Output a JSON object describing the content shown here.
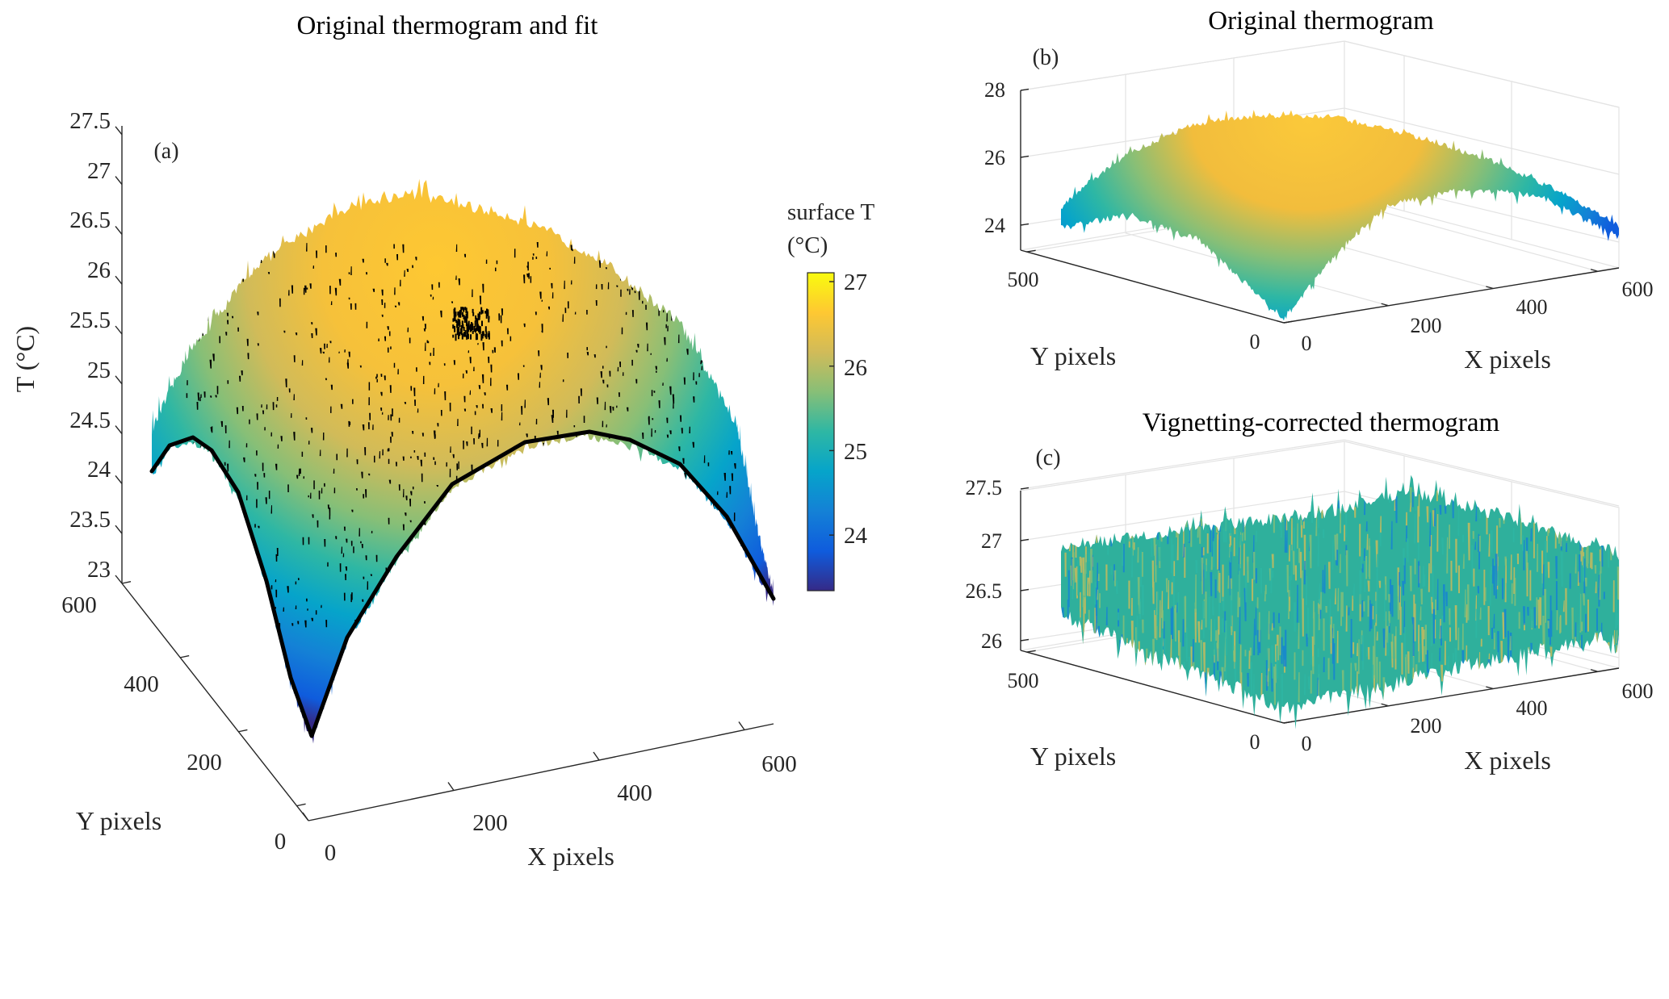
{
  "colormap": [
    "#352a87",
    "#0f5cdd",
    "#1481d6",
    "#06a4ca",
    "#2eb7a4",
    "#87bf77",
    "#d1bb59",
    "#fec832",
    "#f9fb0e"
  ],
  "chart_data": [
    {
      "panel_label": "(a)",
      "title": "Original thermogram and fit",
      "type": "surface",
      "xlabel": "X pixels",
      "ylabel": "Y pixels",
      "zlabel": "T (°C)",
      "x_ticks": [
        0,
        200,
        400,
        600
      ],
      "y_ticks": [
        0,
        200,
        400,
        600
      ],
      "z_ticks": [
        23,
        23.5,
        24,
        24.5,
        25,
        25.5,
        26,
        26.5,
        27,
        27.5
      ],
      "zlim": [
        23,
        27.5
      ],
      "surface_range_approx": [
        23.3,
        27.1
      ],
      "fit_curve_color": "#000000",
      "colorbar": {
        "title_line1": "surface T",
        "title_line2": "(°C)",
        "ticks": [
          24,
          25,
          26,
          27
        ],
        "range": [
          23.3,
          27.1
        ]
      }
    },
    {
      "panel_label": "(b)",
      "title": "Original thermogram",
      "type": "surface",
      "xlabel": "X pixels",
      "ylabel": "Y pixels",
      "x_ticks": [
        0,
        200,
        400,
        600
      ],
      "y_ticks": [
        0,
        500
      ],
      "z_ticks": [
        24,
        26,
        28
      ],
      "surface_range_approx": [
        23.3,
        27.1
      ]
    },
    {
      "panel_label": "(c)",
      "title": "Vignetting-corrected thermogram",
      "type": "surface",
      "xlabel": "X pixels",
      "ylabel": "Y pixels",
      "x_ticks": [
        0,
        200,
        400,
        600
      ],
      "y_ticks": [
        0,
        500
      ],
      "z_ticks": [
        26,
        26.5,
        27,
        27.5
      ],
      "surface_range_approx": [
        26.0,
        27.3
      ]
    }
  ]
}
